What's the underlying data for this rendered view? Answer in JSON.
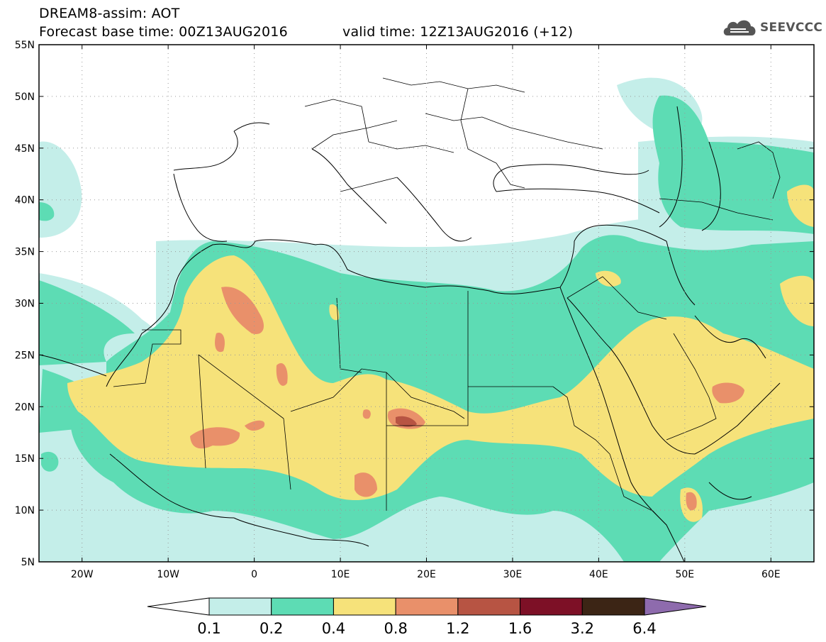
{
  "header": {
    "title_line1": "DREAM8-assim: AOT",
    "forecast_base": "Forecast base time: 00Z13AUG2016",
    "valid_time": "valid time: 12Z13AUG2016 (+12)"
  },
  "logo": {
    "text": "SEEVCCC",
    "icon": "cloud-icon"
  },
  "map": {
    "lat_labels": [
      "55N",
      "50N",
      "45N",
      "40N",
      "35N",
      "30N",
      "25N",
      "20N",
      "15N",
      "10N",
      "5N"
    ],
    "lon_labels": [
      "20W",
      "10W",
      "0",
      "10E",
      "20E",
      "30E",
      "40E",
      "50E",
      "60E"
    ],
    "lat_range": [
      5,
      55
    ],
    "lon_range": [
      -25,
      65
    ]
  },
  "colorbar": {
    "labels": [
      "0.1",
      "0.2",
      "0.4",
      "0.8",
      "1.2",
      "1.6",
      "3.2",
      "6.4"
    ],
    "colors": [
      "#ffffff",
      "#c4eee9",
      "#5ddcb4",
      "#f6e27a",
      "#e9906a",
      "#b75443",
      "#7d1026",
      "#3c2515",
      "#8e6bad"
    ]
  }
}
